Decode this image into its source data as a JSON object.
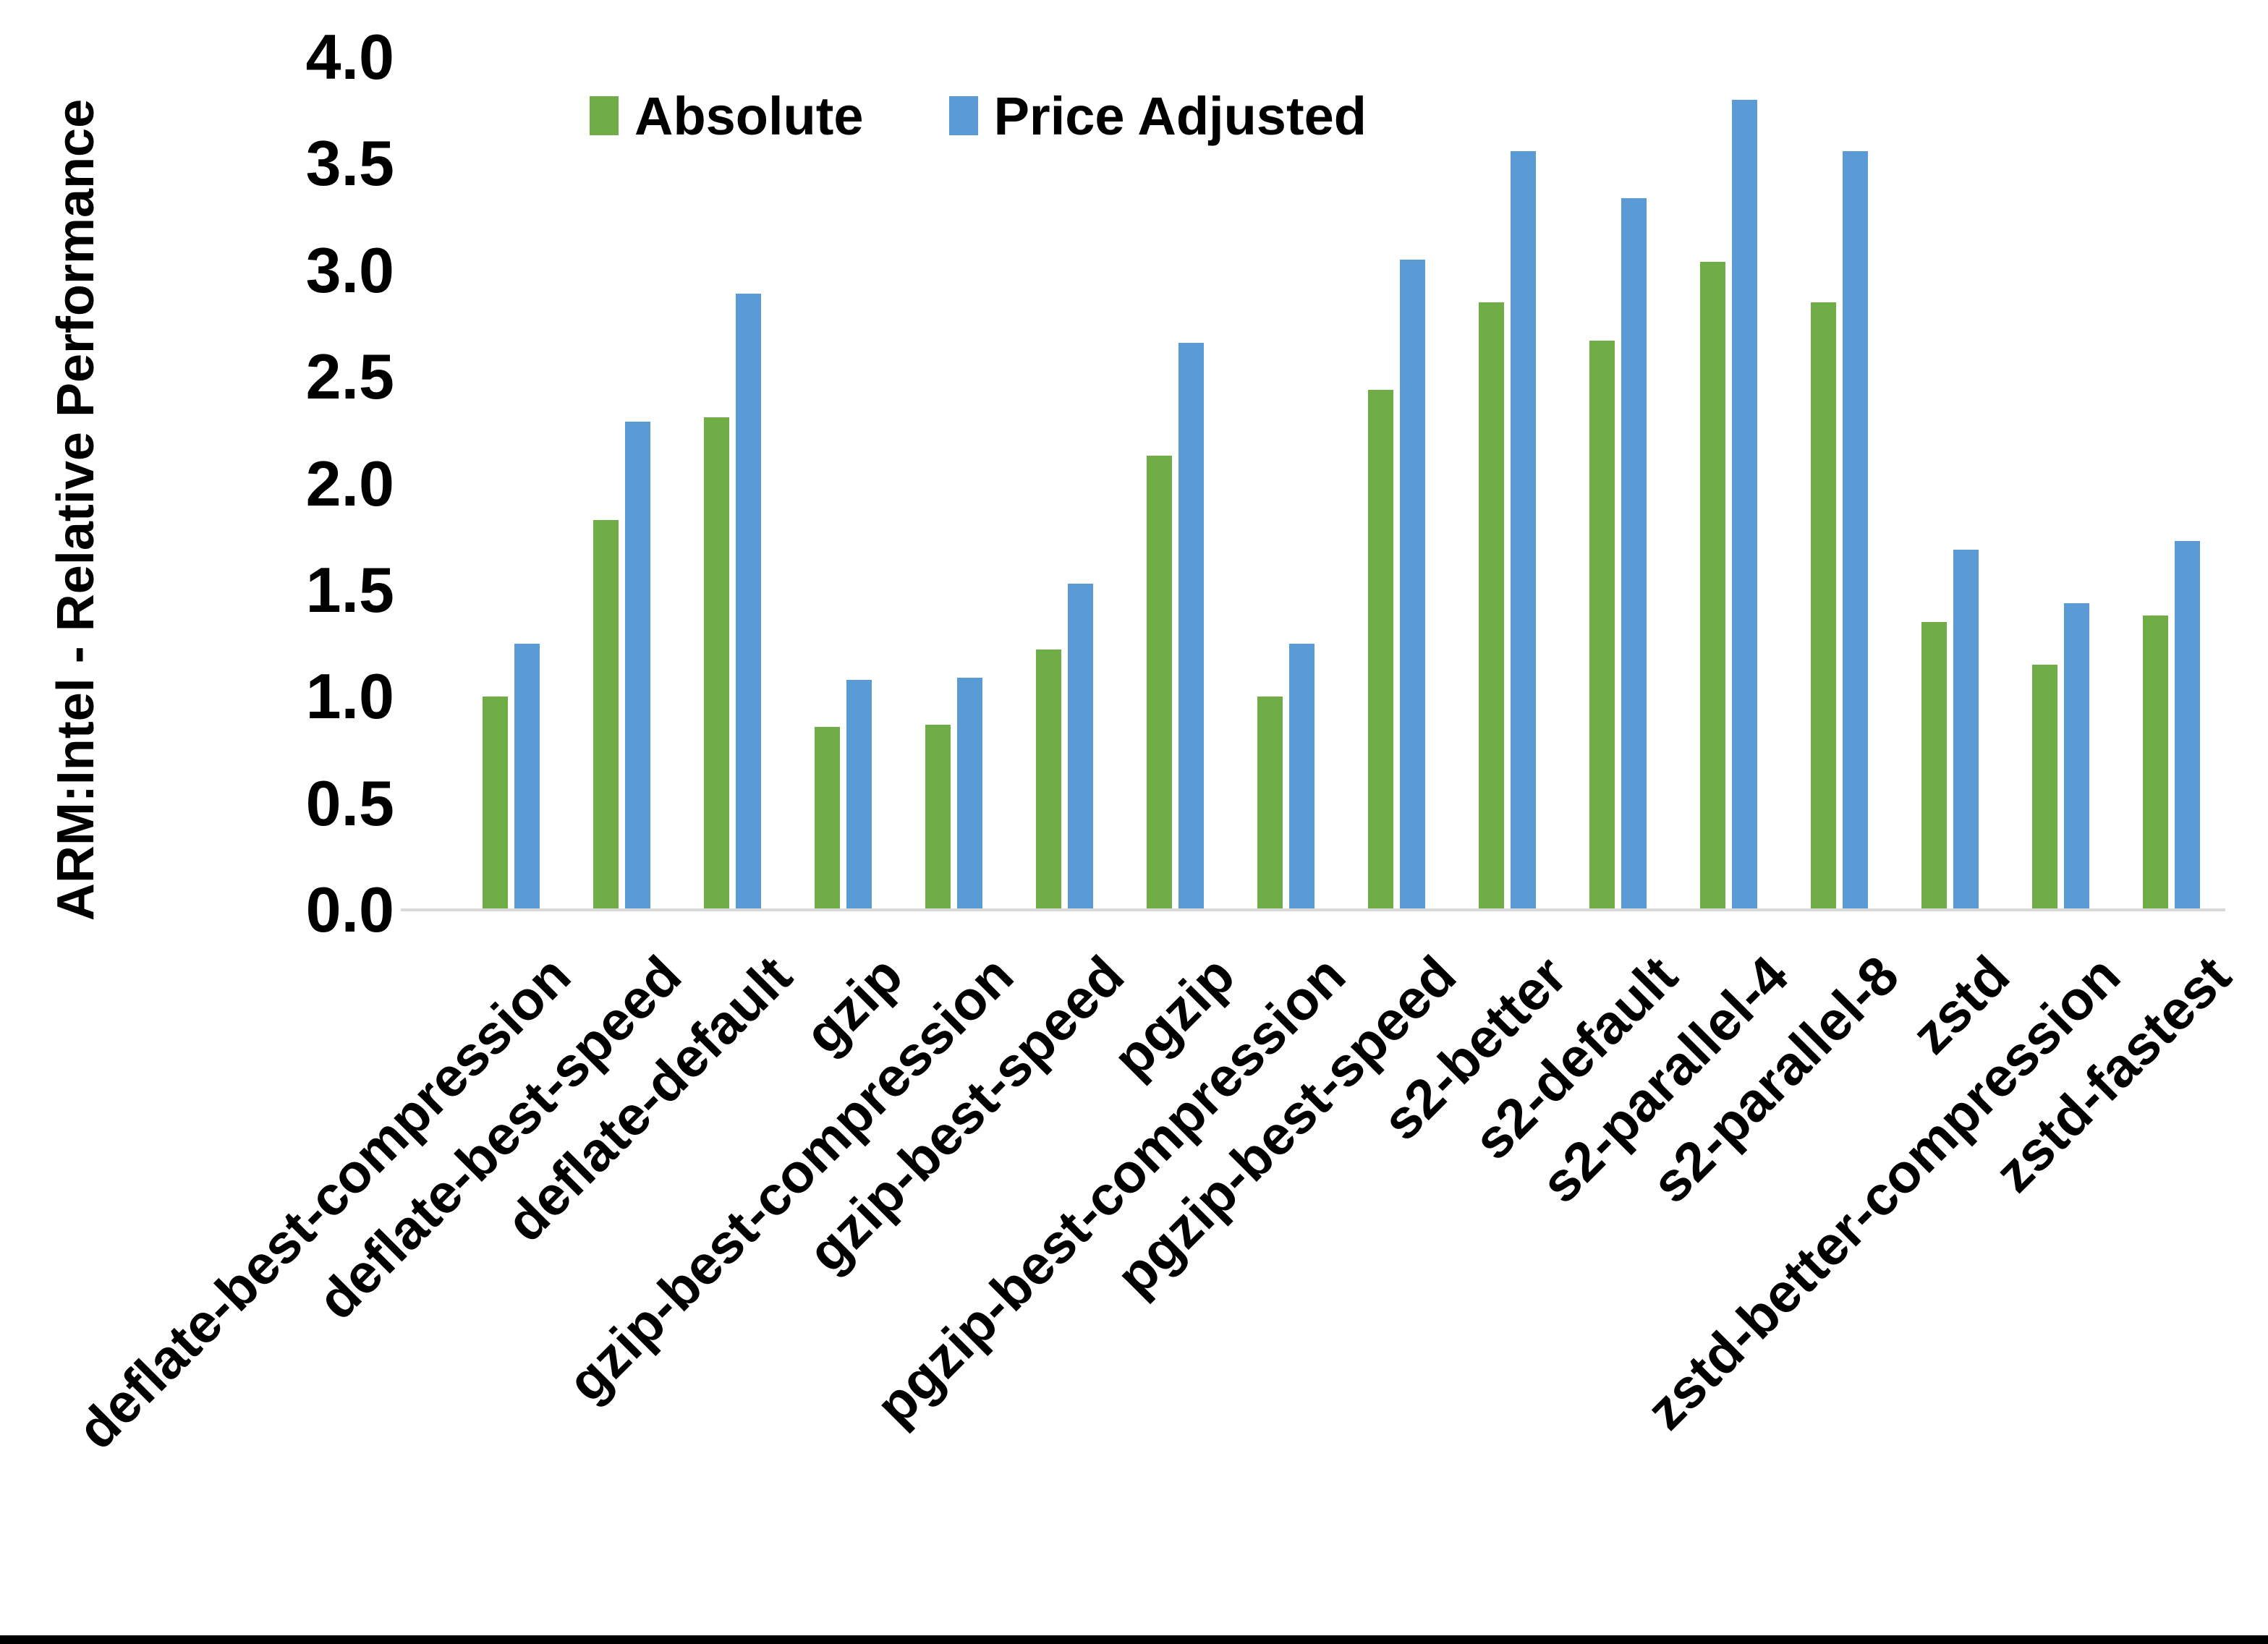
{
  "chart_data": {
    "type": "bar",
    "title": "",
    "ylabel": "ARM:Intel - Relative Performance",
    "xlabel": "",
    "ylim": [
      0.0,
      4.0
    ],
    "ytick_step": 0.5,
    "ytick_labels": [
      "0.0",
      "0.5",
      "1.0",
      "1.5",
      "2.0",
      "2.5",
      "3.0",
      "3.5",
      "4.0"
    ],
    "grid": false,
    "legend_position": "top-center",
    "categories": [
      "deflate-best-compression",
      "deflate-best-speed",
      "deflate-default",
      "gzip",
      "gzip-best-compression",
      "gzip-best-speed",
      "pgzip",
      "pgzip-best-compression",
      "pgzip-best-speed",
      "s2-better",
      "s2-default",
      "s2-parallel-4",
      "s2-parallel-8",
      "zstd",
      "zstd-better-compression",
      "zstd-fastest"
    ],
    "series": [
      {
        "name": "Absolute",
        "color": "#70AD47",
        "values": [
          1.0,
          1.83,
          2.31,
          0.86,
          0.87,
          1.22,
          2.13,
          1.0,
          2.44,
          2.85,
          2.67,
          3.04,
          2.85,
          1.35,
          1.15,
          1.38
        ]
      },
      {
        "name": "Price Adjusted",
        "color": "#5B9BD5",
        "values": [
          1.25,
          2.29,
          2.89,
          1.08,
          1.09,
          1.53,
          2.66,
          1.25,
          3.05,
          3.56,
          3.34,
          3.8,
          3.56,
          1.69,
          1.44,
          1.73
        ]
      }
    ],
    "axis_line_color": "#D9D9D9",
    "text_color": "#000000",
    "background_color": "#FFFFFF"
  }
}
